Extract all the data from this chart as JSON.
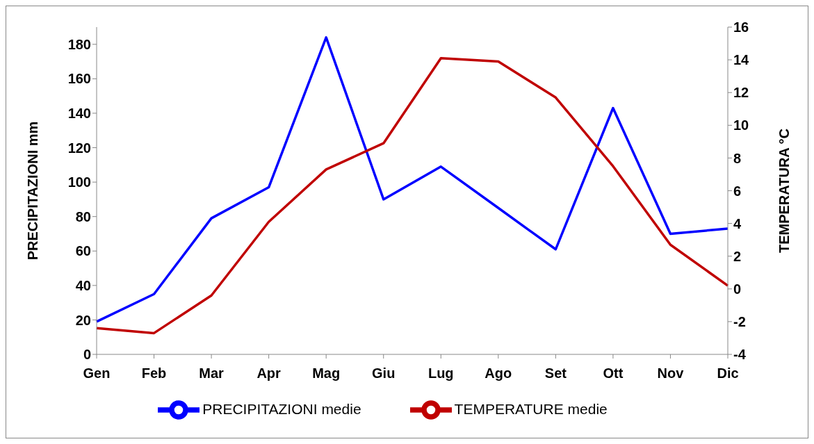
{
  "chart_data": {
    "type": "line",
    "categories": [
      "Gen",
      "Feb",
      "Mar",
      "Apr",
      "Mag",
      "Giu",
      "Lug",
      "Ago",
      "Set",
      "Ott",
      "Nov",
      "Dic"
    ],
    "series": [
      {
        "name": "PRECIPITAZIONI medie",
        "color": "#0000ff",
        "values": [
          19,
          35,
          79,
          97,
          184,
          90,
          109,
          85,
          61,
          143,
          70,
          73
        ]
      },
      {
        "name": "TEMPERATURE medie",
        "color": "#c00000",
        "axis": "y2",
        "values": [
          -2.4,
          -2.7,
          -0.4,
          4.1,
          7.3,
          8.9,
          14.1,
          13.9,
          11.7,
          7.5,
          2.7,
          0.2
        ]
      }
    ],
    "ylabel": "PRECIPITAZIONI mm",
    "y2label": "TEMPERATURA °C",
    "ylim": [
      0,
      190
    ],
    "yticks": [
      0,
      20,
      40,
      60,
      80,
      100,
      120,
      140,
      160,
      180
    ],
    "y2lim": [
      -4,
      16
    ],
    "y2ticks": [
      -4,
      -2,
      0,
      2,
      4,
      6,
      8,
      10,
      12,
      14,
      16
    ],
    "legend": "bottom",
    "grid": false,
    "marker": "none",
    "line_style": "solid"
  }
}
